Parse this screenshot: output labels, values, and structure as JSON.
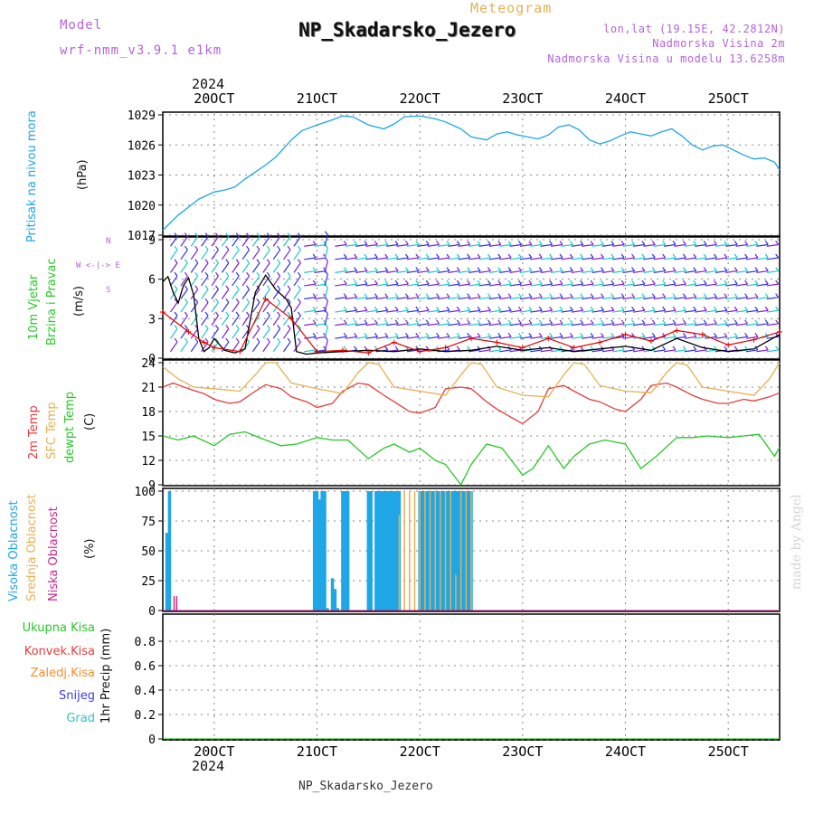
{
  "header": {
    "meteogram_label": "Meteogram",
    "station": "NP_Skadarsko_Jezero",
    "model_label": "Model",
    "model_name": "wrf-nmm_v3.9.1 e1km",
    "lonlat": "lon,lat (19.15E, 42.2812N)",
    "elevation": "Nadmorska Visina 2m",
    "model_elevation": "Nadmorska Visina u modelu 13.6258m",
    "year_top": "2024",
    "year_bottom": "2024",
    "footer_station": "NP_Skadarsko_Jezero",
    "watermark": "made by Angel"
  },
  "colors": {
    "pressure": "#1ea6e6",
    "wind_speed": "#000000",
    "gust": "#e60000",
    "barb_a": "#7b1fd6",
    "barb_b": "#1ec8c8",
    "barb_c": "#3030e6",
    "temp2m": "#e63c3c",
    "sfc_temp": "#e6b050",
    "dewpoint": "#28c828",
    "high_cloud": "#1ea6e6",
    "mid_cloud": "#e6b050",
    "low_cloud": "#c8288c",
    "total_precip": "#28c828",
    "conv_precip": "#e63c3c",
    "frozen_precip": "#ff8c28",
    "snow": "#3c3ce6",
    "hail": "#28c8c8",
    "model_label": "#b464dc",
    "title_gold": "#e6b050"
  },
  "time_axis": {
    "dates": [
      "20OCT",
      "21OCT",
      "22OCT",
      "23OCT",
      "24OCT",
      "25OCT"
    ]
  },
  "chart_data": [
    {
      "type": "line",
      "panel": "pressure",
      "title": "",
      "ylabel_lines": [
        "Pritisak na nivou mora",
        "(hPa)"
      ],
      "ylim": [
        1017,
        1029
      ],
      "yticks": [
        "1017",
        "1020",
        "1023",
        "1026",
        "1029"
      ],
      "grid": true,
      "series": [
        {
          "name": "Pritisak na nivou mora",
          "x_days": [
            0,
            0.1,
            0.3,
            0.5,
            0.7,
            1.0,
            1.2,
            1.4,
            1.6,
            1.8,
            2.0,
            2.2,
            2.5,
            2.7,
            3.0,
            3.3,
            3.5,
            3.7,
            4.0,
            4.3,
            4.5,
            4.7,
            5.0,
            5.3,
            5.5,
            5.8,
            6.0,
            6.3,
            6.5,
            6.7,
            6.9,
            7.1,
            7.3,
            7.5,
            7.7,
            7.9,
            8.1,
            8.3,
            8.5,
            8.7,
            8.9,
            9.1,
            9.3,
            9.5,
            9.7,
            9.9,
            10.1,
            10.3,
            10.5,
            10.7,
            10.9,
            11.1,
            11.3,
            11.5,
            11.7,
            11.9,
            12.0
          ],
          "values": [
            1017.5,
            1018,
            1019,
            1019.8,
            1020.6,
            1021.3,
            1021.5,
            1021.8,
            1022.6,
            1023.3,
            1024.0,
            1024.8,
            1026.5,
            1027.4,
            1028.0,
            1028.5,
            1028.9,
            1028.8,
            1028.0,
            1027.6,
            1028.1,
            1028.8,
            1028.9,
            1028.6,
            1028.3,
            1027.6,
            1026.8,
            1026.5,
            1027.1,
            1027.3,
            1027.0,
            1026.8,
            1026.6,
            1027.0,
            1027.8,
            1028.0,
            1027.5,
            1026.5,
            1026.1,
            1026.4,
            1026.9,
            1027.3,
            1027.1,
            1026.9,
            1027.3,
            1027.6,
            1026.9,
            1026.0,
            1025.5,
            1025.9,
            1026.0,
            1025.5,
            1025.0,
            1024.6,
            1024.7,
            1024.3,
            1023.5
          ]
        }
      ]
    },
    {
      "type": "line",
      "panel": "wind",
      "title": "",
      "ylabel_lines": [
        "10m Vjetar",
        "Brzina i Pravac",
        "(m/s)"
      ],
      "compass_labels": [
        "N",
        "W <-|-> E",
        "S"
      ],
      "ylim": [
        0,
        9
      ],
      "yticks": [
        "0",
        "3",
        "6",
        "9"
      ],
      "grid": true,
      "series": [
        {
          "name": "wind_speed",
          "x_days": [
            0,
            0.1,
            0.2,
            0.3,
            0.4,
            0.5,
            0.6,
            0.7,
            0.8,
            0.9,
            1.0,
            1.2,
            1.4,
            1.6,
            1.8,
            2.0,
            2.2,
            2.4,
            2.5,
            2.6,
            2.8,
            3.0,
            3.5,
            4.0,
            4.5,
            5.0,
            5.5,
            6.0,
            6.5,
            7.0,
            7.5,
            8.0,
            8.5,
            9.0,
            9.5,
            10.0,
            10.5,
            11.0,
            11.5,
            12.0
          ],
          "values": [
            5.8,
            6.2,
            5.0,
            4.2,
            5.5,
            6.1,
            4.8,
            1.5,
            0.5,
            0.8,
            1.5,
            0.6,
            0.4,
            0.7,
            5.0,
            6.3,
            5.2,
            4.5,
            3.8,
            0.5,
            0.3,
            0.4,
            0.5,
            0.6,
            0.5,
            0.7,
            0.5,
            0.6,
            0.9,
            0.6,
            0.8,
            0.5,
            0.7,
            0.9,
            0.6,
            1.5,
            0.8,
            0.5,
            0.7,
            1.8
          ]
        },
        {
          "name": "gust",
          "x_days": [
            0,
            0.5,
            0.8,
            1.0,
            1.5,
            2.0,
            2.5,
            3.0,
            3.5,
            4.0,
            4.5,
            5.0,
            5.5,
            6.0,
            6.5,
            7.0,
            7.5,
            8.0,
            8.5,
            9.0,
            9.5,
            10.0,
            10.5,
            11.0,
            11.5,
            12.0
          ],
          "values": [
            3.5,
            2.0,
            1.2,
            0.8,
            0.5,
            4.5,
            3.0,
            0.5,
            0.6,
            0.4,
            1.2,
            0.5,
            0.8,
            1.5,
            1.2,
            0.8,
            1.5,
            0.8,
            1.2,
            1.8,
            1.3,
            2.1,
            1.8,
            1.0,
            1.4,
            2.0
          ]
        }
      ]
    },
    {
      "type": "line",
      "panel": "temperature",
      "title": "",
      "ylabel_lines": [
        "2m Temp",
        "SFC Temp",
        "dewpt Temp",
        "(C)"
      ],
      "ylim": [
        9,
        24
      ],
      "yticks": [
        "9",
        "12",
        "15",
        "18",
        "21",
        "24"
      ],
      "grid": true,
      "series": [
        {
          "name": "2m Temp",
          "x_days": [
            0,
            0.2,
            0.5,
            0.8,
            1.0,
            1.3,
            1.5,
            1.8,
            2.0,
            2.3,
            2.5,
            2.8,
            3.0,
            3.3,
            3.5,
            3.8,
            4.0,
            4.3,
            4.5,
            4.8,
            5.0,
            5.3,
            5.5,
            5.8,
            6.0,
            6.3,
            6.5,
            6.8,
            7.0,
            7.3,
            7.5,
            7.8,
            8.0,
            8.3,
            8.5,
            8.8,
            9.0,
            9.3,
            9.5,
            9.8,
            10.0,
            10.3,
            10.5,
            10.8,
            11.0,
            11.3,
            11.5,
            11.8,
            12.0
          ],
          "values": [
            21.0,
            21.5,
            20.8,
            20.2,
            19.5,
            19.0,
            19.2,
            20.5,
            21.3,
            20.8,
            19.8,
            19.2,
            18.5,
            19.0,
            20.5,
            21.5,
            21.3,
            20.0,
            19.2,
            18.0,
            17.8,
            18.5,
            20.8,
            21.0,
            20.8,
            19.2,
            18.3,
            17.2,
            16.5,
            18.0,
            20.8,
            21.2,
            20.5,
            19.5,
            19.2,
            18.3,
            18.0,
            19.5,
            21.2,
            21.5,
            21.0,
            20.0,
            19.5,
            19.0,
            19.0,
            19.5,
            19.3,
            19.8,
            20.3
          ]
        },
        {
          "name": "SFC Temp",
          "x_days": [
            0,
            0.3,
            0.6,
            1.0,
            1.5,
            1.8,
            2.0,
            2.2,
            2.5,
            3.0,
            3.5,
            3.8,
            4.0,
            4.2,
            4.5,
            5.0,
            5.5,
            5.8,
            6.0,
            6.2,
            6.5,
            7.0,
            7.5,
            7.8,
            8.0,
            8.2,
            8.5,
            9.0,
            9.5,
            9.8,
            10.0,
            10.2,
            10.5,
            11.0,
            11.5,
            11.8,
            12.0
          ],
          "values": [
            23.5,
            22.0,
            21.0,
            20.8,
            20.5,
            22.5,
            24.0,
            24.0,
            21.5,
            20.8,
            20.2,
            22.8,
            24.0,
            23.8,
            21.0,
            20.5,
            20.0,
            22.5,
            24.0,
            23.8,
            21.0,
            20.0,
            19.8,
            22.5,
            24.0,
            23.8,
            21.2,
            20.5,
            20.3,
            22.8,
            24.0,
            23.7,
            21.0,
            20.5,
            20.0,
            22.0,
            24.0
          ]
        },
        {
          "name": "dewpt Temp",
          "x_days": [
            0,
            0.3,
            0.6,
            1.0,
            1.3,
            1.6,
            2.0,
            2.3,
            2.6,
            3.0,
            3.3,
            3.6,
            4.0,
            4.3,
            4.5,
            4.8,
            5.0,
            5.3,
            5.5,
            5.8,
            6.0,
            6.3,
            6.6,
            7.0,
            7.2,
            7.5,
            7.8,
            8.0,
            8.3,
            8.6,
            9.0,
            9.3,
            9.6,
            10.0,
            10.3,
            10.6,
            11.0,
            11.3,
            11.6,
            11.9,
            12.0
          ],
          "values": [
            15.0,
            14.5,
            15.0,
            13.8,
            15.2,
            15.5,
            14.5,
            13.8,
            14.0,
            14.8,
            14.5,
            14.5,
            12.2,
            13.5,
            14.0,
            13.0,
            13.5,
            12.0,
            11.5,
            9.0,
            11.5,
            14.0,
            13.5,
            10.2,
            11.0,
            13.8,
            11.0,
            12.5,
            14.0,
            14.5,
            14.0,
            11.0,
            12.5,
            14.8,
            14.8,
            15.0,
            14.8,
            15.0,
            15.2,
            12.5,
            13.6
          ]
        }
      ]
    },
    {
      "type": "bar",
      "panel": "cloud",
      "title": "",
      "ylabel_lines": [
        "Visoka Oblacnost",
        "Srednja Oblacnost",
        "Niska Oblacnost",
        "(%)"
      ],
      "ylim": [
        0,
        100
      ],
      "yticks": [
        "0",
        "25",
        "50",
        "75",
        "100"
      ],
      "grid": true,
      "series": [
        {
          "name": "Visoka Oblacnost",
          "x_days": [
            0.08,
            0.13,
            2.95,
            3.0,
            3.05,
            3.1,
            3.15,
            3.2,
            3.3,
            3.35,
            3.4,
            3.5,
            3.55,
            3.6,
            4.0,
            4.05,
            4.15,
            4.2,
            4.25,
            4.3,
            4.35,
            4.4,
            4.45,
            4.5,
            4.55,
            4.6,
            5.0,
            5.05,
            5.1,
            5.15,
            5.2,
            5.25,
            5.3,
            5.35,
            5.4,
            5.45,
            5.5,
            5.55,
            5.6,
            5.65,
            5.7,
            5.75,
            5.8,
            5.85,
            5.9,
            5.95,
            6.0
          ],
          "values": [
            65,
            100,
            100,
            100,
            93,
            100,
            100,
            2,
            27,
            18,
            2,
            100,
            100,
            100,
            100,
            100,
            100,
            100,
            100,
            100,
            100,
            100,
            100,
            100,
            100,
            100,
            100,
            100,
            100,
            100,
            100,
            100,
            100,
            100,
            100,
            100,
            100,
            100,
            100,
            100,
            100,
            100,
            100,
            100,
            100,
            100,
            100
          ]
        },
        {
          "name": "Srednja Oblacnost",
          "x_days": [
            4.6,
            4.7,
            4.8,
            4.9,
            5.0,
            5.1,
            5.2,
            5.3,
            5.4,
            5.5,
            5.6,
            5.7,
            5.8,
            5.9,
            6.0
          ],
          "values": [
            80,
            100,
            100,
            100,
            100,
            100,
            100,
            100,
            100,
            100,
            100,
            30,
            100,
            100,
            100
          ]
        },
        {
          "name": "Niska Oblacnost",
          "x_days": [
            0.22,
            0.27
          ],
          "values": [
            12,
            12
          ]
        }
      ]
    },
    {
      "type": "line",
      "panel": "precipitation",
      "title": "",
      "ylabel_lines": [
        "1hr Precip (mm)"
      ],
      "ylim": [
        0,
        1
      ],
      "yticks": [
        "0",
        "0.2",
        "0.4",
        "0.6",
        "0.8"
      ],
      "grid": true,
      "legend_labels": [
        "Ukupna Kisa",
        "Konvek.Kisa",
        "Zaledj.Kisa",
        "Snijeg",
        "Grad"
      ],
      "series": [
        {
          "name": "Ukupna Kisa",
          "x_days": [
            0,
            12
          ],
          "values": [
            0,
            0
          ]
        }
      ]
    }
  ]
}
